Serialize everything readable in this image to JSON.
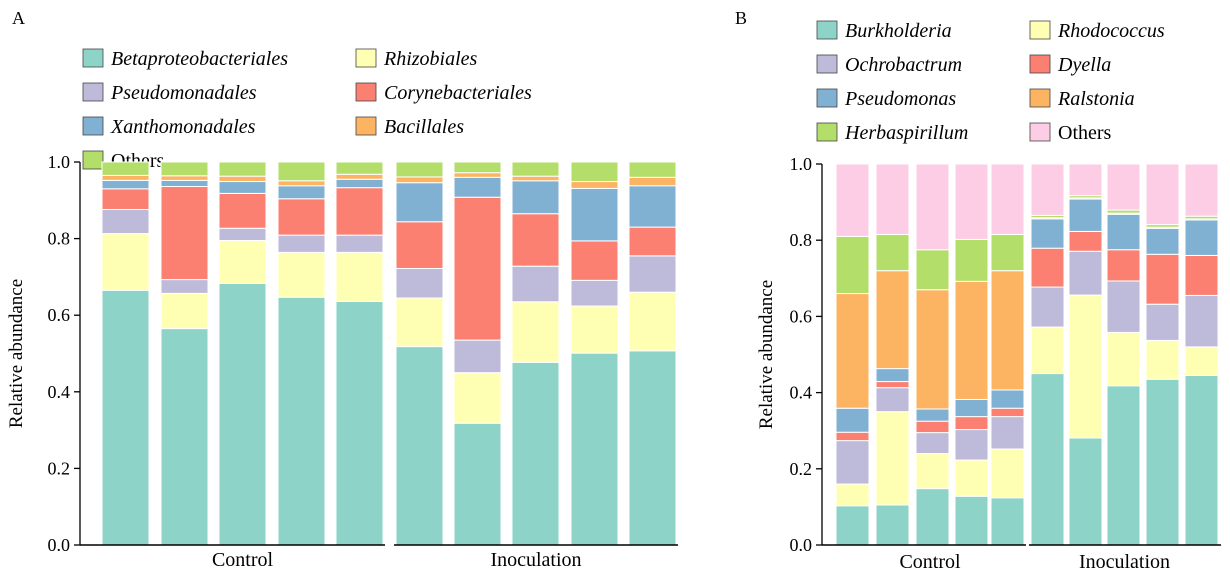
{
  "chart_data": [
    {
      "panel_label": "A",
      "type": "bar",
      "stacked": true,
      "ylabel": "Relative abundance",
      "ylim": [
        0,
        1.0
      ],
      "yticks": [
        0.0,
        0.2,
        0.4,
        0.6,
        0.8,
        1.0
      ],
      "ytick_labels": [
        "0.0",
        "0.2",
        "0.4",
        "0.6",
        "0.8",
        "1.0"
      ],
      "groups": [
        {
          "label": "Control",
          "bar_count": 5
        },
        {
          "label": "Inoculation",
          "bar_count": 5
        }
      ],
      "legend_columns": 2,
      "legend_order": [
        "Betaproteobacteriales",
        "Rhizobiales",
        "Pseudomonadales",
        "Corynebacteriales",
        "Xanthomonadales",
        "Bacillales",
        "Others"
      ],
      "series": [
        {
          "name": "Betaproteobacteriales",
          "italic": true,
          "color": "#8dd3c7",
          "values": [
            0.665,
            0.565,
            0.683,
            0.647,
            0.636,
            0.518,
            0.318,
            0.477,
            0.501,
            0.507
          ]
        },
        {
          "name": "Rhizobiales",
          "italic": true,
          "color": "#ffffb3",
          "values": [
            0.148,
            0.092,
            0.112,
            0.117,
            0.128,
            0.127,
            0.132,
            0.158,
            0.123,
            0.153
          ]
        },
        {
          "name": "Pseudomonadales",
          "italic": true,
          "color": "#bebada",
          "values": [
            0.063,
            0.036,
            0.032,
            0.045,
            0.045,
            0.077,
            0.085,
            0.093,
            0.067,
            0.095
          ]
        },
        {
          "name": "Corynebacteriales",
          "italic": true,
          "color": "#fb8072",
          "values": [
            0.054,
            0.243,
            0.091,
            0.095,
            0.124,
            0.122,
            0.373,
            0.137,
            0.103,
            0.075
          ]
        },
        {
          "name": "Xanthomonadales",
          "italic": true,
          "color": "#80b1d3",
          "values": [
            0.022,
            0.016,
            0.031,
            0.034,
            0.022,
            0.102,
            0.052,
            0.086,
            0.137,
            0.108
          ]
        },
        {
          "name": "Bacillales",
          "italic": true,
          "color": "#fdb462",
          "values": [
            0.013,
            0.012,
            0.014,
            0.013,
            0.013,
            0.015,
            0.012,
            0.012,
            0.018,
            0.022
          ]
        },
        {
          "name": "Others",
          "italic": false,
          "color": "#b3de69",
          "values": [
            0.035,
            0.036,
            0.037,
            0.049,
            0.032,
            0.039,
            0.028,
            0.037,
            0.051,
            0.04
          ]
        }
      ]
    },
    {
      "panel_label": "B",
      "type": "bar",
      "stacked": true,
      "ylabel": "Relative abundance",
      "ylim": [
        0,
        1.0
      ],
      "yticks": [
        0.0,
        0.2,
        0.4,
        0.6,
        0.8,
        1.0
      ],
      "ytick_labels": [
        "0.0",
        "0.2",
        "0.4",
        "0.6",
        "0.8",
        "1.0"
      ],
      "groups": [
        {
          "label": "Control",
          "bar_count": 5
        },
        {
          "label": "Inoculation",
          "bar_count": 5
        }
      ],
      "legend_columns": 2,
      "legend_order": [
        "Burkholderia",
        "Rhodococcus",
        "Ochrobactrum",
        "Dyella",
        "Pseudomonas",
        "Ralstonia",
        "Herbaspirillum",
        "Others"
      ],
      "series": [
        {
          "name": "Burkholderia",
          "italic": true,
          "color": "#8dd3c7",
          "values": [
            0.103,
            0.105,
            0.148,
            0.128,
            0.124,
            0.45,
            0.281,
            0.418,
            0.435,
            0.445
          ]
        },
        {
          "name": "Rhodococcus",
          "italic": true,
          "color": "#ffffb3",
          "values": [
            0.057,
            0.245,
            0.092,
            0.095,
            0.128,
            0.122,
            0.375,
            0.14,
            0.102,
            0.075
          ]
        },
        {
          "name": "Ochrobactrum",
          "italic": true,
          "color": "#bebada",
          "values": [
            0.114,
            0.063,
            0.055,
            0.08,
            0.085,
            0.105,
            0.115,
            0.135,
            0.095,
            0.135
          ]
        },
        {
          "name": "Dyella",
          "italic": true,
          "color": "#fb8072",
          "values": [
            0.022,
            0.016,
            0.03,
            0.034,
            0.022,
            0.102,
            0.052,
            0.082,
            0.131,
            0.105
          ]
        },
        {
          "name": "Pseudomonas",
          "italic": true,
          "color": "#80b1d3",
          "values": [
            0.063,
            0.034,
            0.032,
            0.045,
            0.048,
            0.077,
            0.085,
            0.093,
            0.068,
            0.093
          ]
        },
        {
          "name": "Ralstonia",
          "italic": true,
          "color": "#fdb462",
          "values": [
            0.301,
            0.257,
            0.313,
            0.31,
            0.313,
            0.003,
            0.003,
            0.003,
            0.003,
            0.003
          ]
        },
        {
          "name": "Herbaspirillum",
          "italic": true,
          "color": "#b3de69",
          "values": [
            0.15,
            0.095,
            0.105,
            0.11,
            0.095,
            0.006,
            0.006,
            0.008,
            0.007,
            0.007
          ]
        },
        {
          "name": "Others",
          "italic": false,
          "color": "#fccde5",
          "values": [
            0.19,
            0.185,
            0.225,
            0.198,
            0.185,
            0.135,
            0.083,
            0.121,
            0.159,
            0.137
          ]
        }
      ]
    }
  ]
}
